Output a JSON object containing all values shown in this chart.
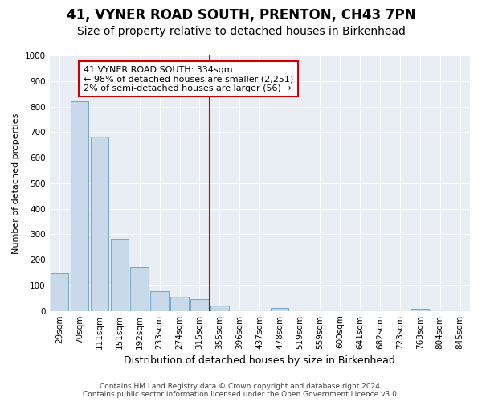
{
  "title": "41, VYNER ROAD SOUTH, PRENTON, CH43 7PN",
  "subtitle": "Size of property relative to detached houses in Birkenhead",
  "xlabel": "Distribution of detached houses by size in Birkenhead",
  "ylabel": "Number of detached properties",
  "categories": [
    "29sqm",
    "70sqm",
    "111sqm",
    "151sqm",
    "192sqm",
    "233sqm",
    "274sqm",
    "315sqm",
    "355sqm",
    "396sqm",
    "437sqm",
    "478sqm",
    "519sqm",
    "559sqm",
    "600sqm",
    "641sqm",
    "682sqm",
    "723sqm",
    "763sqm",
    "804sqm",
    "845sqm"
  ],
  "values": [
    148,
    822,
    682,
    283,
    173,
    78,
    55,
    45,
    20,
    0,
    0,
    13,
    0,
    0,
    0,
    0,
    0,
    0,
    10,
    0,
    0
  ],
  "bar_color": "#c8daea",
  "bar_edge_color": "#7aaac8",
  "vline_color": "#cc0000",
  "vline_x_index": 7.5,
  "annotation_text": "41 VYNER ROAD SOUTH: 334sqm\n← 98% of detached houses are smaller (2,251)\n2% of semi-detached houses are larger (56) →",
  "annotation_box_facecolor": "#ffffff",
  "annotation_box_edgecolor": "#cc0000",
  "ylim": [
    0,
    1000
  ],
  "yticks": [
    0,
    100,
    200,
    300,
    400,
    500,
    600,
    700,
    800,
    900,
    1000
  ],
  "fig_facecolor": "#ffffff",
  "axes_facecolor": "#e8eef4",
  "grid_color": "#ffffff",
  "title_fontsize": 12,
  "subtitle_fontsize": 10,
  "tick_fontsize": 7.5,
  "ylabel_fontsize": 8,
  "xlabel_fontsize": 9,
  "footer_line1": "Contains HM Land Registry data © Crown copyright and database right 2024.",
  "footer_line2": "Contains public sector information licensed under the Open Government Licence v3.0."
}
